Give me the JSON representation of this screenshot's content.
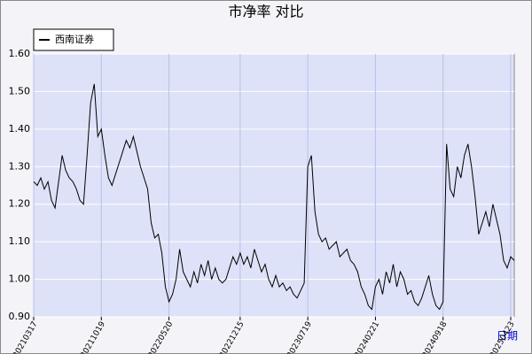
{
  "chart_data": {
    "type": "line",
    "title": "市净率  对比",
    "x_label": "日期",
    "categories": [
      "20210317",
      null,
      null,
      null,
      null,
      null,
      null,
      null,
      null,
      null,
      null,
      null,
      null,
      null,
      null,
      null,
      null,
      null,
      null,
      "20211019",
      null,
      null,
      null,
      null,
      null,
      null,
      null,
      null,
      null,
      null,
      null,
      null,
      null,
      null,
      null,
      null,
      null,
      null,
      "20220520",
      null,
      null,
      null,
      null,
      null,
      null,
      null,
      null,
      null,
      null,
      null,
      null,
      null,
      null,
      null,
      null,
      null,
      null,
      null,
      "20221215",
      null,
      null,
      null,
      null,
      null,
      null,
      null,
      null,
      null,
      null,
      null,
      null,
      null,
      null,
      null,
      null,
      null,
      null,
      "20230719",
      null,
      null,
      null,
      null,
      null,
      null,
      null,
      null,
      null,
      null,
      null,
      null,
      null,
      null,
      null,
      null,
      null,
      null,
      "20240221",
      null,
      null,
      null,
      null,
      null,
      null,
      null,
      null,
      null,
      null,
      null,
      null,
      null,
      null,
      null,
      null,
      null,
      null,
      "20240918",
      null,
      null,
      null,
      null,
      null,
      null,
      null,
      null,
      null,
      null,
      null,
      null,
      null,
      null,
      null,
      null,
      null,
      null,
      "20250423",
      null
    ],
    "series": [
      {
        "name": "西南证券",
        "color": "#000000",
        "values": [
          1.26,
          1.25,
          1.27,
          1.24,
          1.26,
          1.21,
          1.19,
          1.26,
          1.33,
          1.29,
          1.27,
          1.26,
          1.24,
          1.21,
          1.2,
          1.33,
          1.47,
          1.52,
          1.38,
          1.4,
          1.33,
          1.27,
          1.25,
          1.28,
          1.31,
          1.34,
          1.37,
          1.35,
          1.38,
          1.34,
          1.3,
          1.27,
          1.24,
          1.15,
          1.11,
          1.12,
          1.07,
          0.98,
          0.94,
          0.96,
          1.0,
          1.08,
          1.02,
          1.0,
          0.98,
          1.02,
          0.99,
          1.04,
          1.01,
          1.05,
          1.0,
          1.03,
          1.0,
          0.99,
          1.0,
          1.03,
          1.06,
          1.04,
          1.07,
          1.04,
          1.06,
          1.03,
          1.08,
          1.05,
          1.02,
          1.04,
          1.0,
          0.98,
          1.01,
          0.98,
          0.99,
          0.97,
          0.98,
          0.96,
          0.95,
          0.97,
          0.99,
          1.3,
          1.33,
          1.18,
          1.12,
          1.1,
          1.11,
          1.08,
          1.09,
          1.1,
          1.06,
          1.07,
          1.08,
          1.05,
          1.04,
          1.02,
          0.98,
          0.96,
          0.93,
          0.92,
          0.98,
          1.0,
          0.96,
          1.02,
          0.99,
          1.04,
          0.98,
          1.02,
          1.0,
          0.96,
          0.97,
          0.94,
          0.93,
          0.95,
          0.98,
          1.01,
          0.96,
          0.93,
          0.92,
          0.94,
          1.36,
          1.24,
          1.22,
          1.3,
          1.27,
          1.33,
          1.36,
          1.3,
          1.22,
          1.12,
          1.15,
          1.18,
          1.14,
          1.2,
          1.16,
          1.12,
          1.05,
          1.03,
          1.06,
          1.05
        ]
      }
    ],
    "ylim": [
      0.9,
      1.6
    ],
    "yticks": [
      {
        "value": 0.9,
        "label": "0.90"
      },
      {
        "value": 1.0,
        "label": "1.00"
      },
      {
        "value": 1.1,
        "label": "1.10"
      },
      {
        "value": 1.2,
        "label": "1.20"
      },
      {
        "value": 1.3,
        "label": "1.30"
      },
      {
        "value": 1.4,
        "label": "1.40"
      },
      {
        "value": 1.5,
        "label": "1.50"
      },
      {
        "value": 1.6,
        "label": "1.60"
      }
    ],
    "grid": true,
    "legend": "top-left"
  }
}
